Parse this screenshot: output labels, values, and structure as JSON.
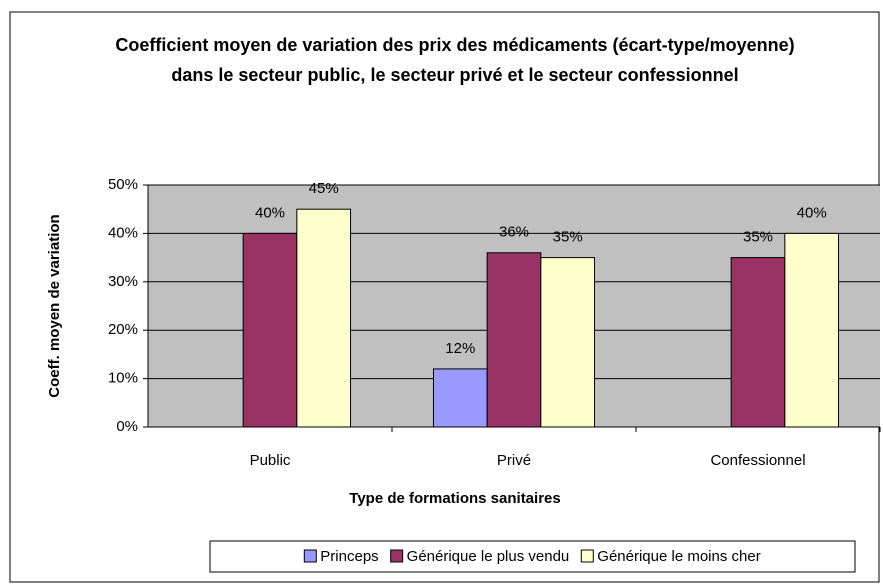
{
  "chart_data": {
    "type": "bar",
    "title": "Coefficient moyen de variation des prix des médicaments (écart-type/moyenne) dans le secteur public, le secteur privé et le secteur confessionnel",
    "y_label": "Coeff. moyen de variation",
    "x_label": "Type de formations sanitaires",
    "categories": [
      "Public",
      "Privé",
      "Confessionnel"
    ],
    "series": [
      {
        "name": "Princeps",
        "color": "#9999ff",
        "values": [
          null,
          12,
          null
        ],
        "value_labels": [
          null,
          "12%",
          null
        ]
      },
      {
        "name": "Générique le plus vendu",
        "color": "#993366",
        "values": [
          40,
          36,
          35
        ],
        "value_labels": [
          "40%",
          "36%",
          "35%"
        ]
      },
      {
        "name": "Générique le moins cher",
        "color": "#ffffcc",
        "values": [
          45,
          35,
          40
        ],
        "value_labels": [
          "45%",
          "35%",
          "40%"
        ]
      }
    ],
    "ylim": [
      0,
      50
    ],
    "yticks": [
      {
        "value": 0,
        "label": "0%"
      },
      {
        "value": 10,
        "label": "10%"
      },
      {
        "value": 20,
        "label": "20%"
      },
      {
        "value": 30,
        "label": "30%"
      },
      {
        "value": 40,
        "label": "40%"
      },
      {
        "value": 50,
        "label": "50%"
      }
    ],
    "grid": true,
    "legend": "bottom"
  }
}
